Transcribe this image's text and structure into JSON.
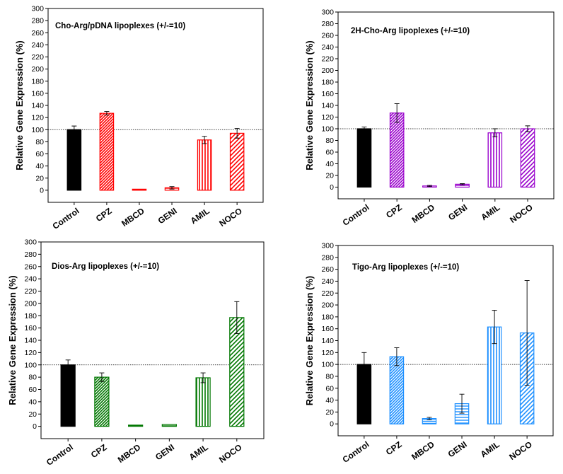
{
  "chart_data": [
    {
      "type": "bar",
      "title": "Cho-Arg/pDNA lipoplexes (+/-=10)",
      "xlabel": "",
      "ylabel": "Relative Gene Expression (%)",
      "categories": [
        "Control",
        "CPZ",
        "MBCD",
        "GENI",
        "AMIL",
        "NOCO"
      ],
      "values": [
        100,
        127,
        0,
        4,
        83,
        94
      ],
      "errors": [
        6,
        3,
        0,
        2,
        6,
        8
      ],
      "ylim": [
        -20,
        300
      ],
      "yticks": [
        0,
        20,
        40,
        60,
        80,
        100,
        120,
        140,
        160,
        180,
        200,
        220,
        240,
        260,
        280,
        300
      ],
      "ytick_labels": [
        "0",
        "20",
        "40",
        "60",
        "80",
        "100",
        "120",
        "140",
        "160",
        "180",
        "200",
        "220",
        "240",
        "260",
        "280",
        "300"
      ],
      "reference_line": 100,
      "color": "#ff0000",
      "patterns": [
        "solid-black",
        "diagonal-dense",
        "horizontal",
        "horizontal-sparse",
        "vertical",
        "diagonal"
      ]
    },
    {
      "type": "bar",
      "title": "2H-Cho-Arg lipoplexes (+/-=10)",
      "xlabel": "",
      "ylabel": "Relative Gene Expression (%)",
      "categories": [
        "Control",
        "CPZ",
        "MBCD",
        "GENI",
        "AMIL",
        "NOCO"
      ],
      "values": [
        100,
        127,
        2,
        5,
        93,
        100
      ],
      "errors": [
        3,
        16,
        1,
        1,
        7,
        5
      ],
      "ylim": [
        -20,
        300
      ],
      "yticks": [
        0,
        20,
        40,
        60,
        80,
        100,
        120,
        140,
        160,
        180,
        200,
        220,
        240,
        260,
        280,
        300
      ],
      "ytick_labels": [
        "0",
        "20",
        "40",
        "60",
        "80",
        "100",
        "120",
        "140",
        "160",
        "180",
        "200",
        "220",
        "240",
        "260",
        "280",
        "300"
      ],
      "reference_line": 100,
      "color": "#9900cc",
      "patterns": [
        "solid-black",
        "diagonal-dense",
        "horizontal",
        "horizontal-sparse",
        "vertical",
        "diagonal"
      ]
    },
    {
      "type": "bar",
      "title": "Dios-Arg lipoplexes (+/-=10)",
      "xlabel": "",
      "ylabel": "Relative Gene Expression (%)",
      "categories": [
        "Control",
        "CPZ",
        "MBCD",
        "GENI",
        "AMIL",
        "NOCO"
      ],
      "values": [
        100,
        80,
        2,
        3,
        79,
        177
      ],
      "errors": [
        8,
        7,
        0,
        0,
        8,
        26
      ],
      "ylim": [
        -20,
        300
      ],
      "yticks": [
        0,
        20,
        40,
        60,
        80,
        100,
        120,
        140,
        160,
        180,
        200,
        220,
        240,
        260,
        280,
        300
      ],
      "ytick_labels": [
        "0",
        "20",
        "40",
        "60",
        "80",
        "100",
        "120",
        "140",
        "160",
        "180",
        "200",
        "220",
        "240",
        "260",
        "280",
        "300"
      ],
      "reference_line": 100,
      "color": "#007700",
      "patterns": [
        "solid-black",
        "diagonal-dense",
        "horizontal",
        "horizontal-sparse",
        "vertical",
        "diagonal"
      ]
    },
    {
      "type": "bar",
      "title": "Tigo-Arg lipoplexes (+/-=10)",
      "xlabel": "",
      "ylabel": "Relative Gene Expression (%)",
      "categories": [
        "Control",
        "CPZ",
        "MBCD",
        "GENI",
        "AMIL",
        "NOCO"
      ],
      "values": [
        100,
        113,
        9,
        34,
        163,
        153
      ],
      "errors": [
        20,
        15,
        2,
        16,
        28,
        88
      ],
      "ylim": [
        -20,
        300
      ],
      "yticks": [
        0,
        20,
        40,
        60,
        80,
        100,
        120,
        140,
        160,
        180,
        200,
        220,
        240,
        260,
        280,
        300
      ],
      "ytick_labels": [
        "0",
        "20",
        "40",
        "60",
        "80",
        "100",
        "120",
        "140",
        "160",
        "180",
        "200",
        "220",
        "240",
        "260",
        "280",
        "300"
      ],
      "reference_line": 100,
      "color": "#1e90ff",
      "patterns": [
        "solid-black",
        "diagonal-dense",
        "horizontal",
        "horizontal-sparse",
        "vertical",
        "diagonal"
      ]
    }
  ]
}
